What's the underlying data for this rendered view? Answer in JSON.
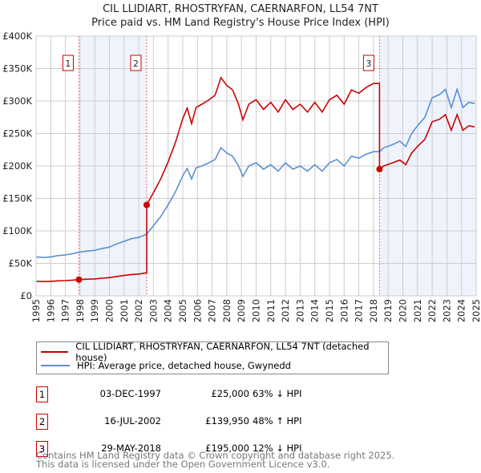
{
  "chart_data": {
    "type": "line",
    "title": "CIL LLIDIART, RHOSTRYFAN, CAERNARFON, LL54 7NT",
    "subtitle": "Price paid vs. HM Land Registry's House Price Index (HPI)",
    "xlim": [
      1995,
      2025
    ],
    "ylim": [
      0,
      400000
    ],
    "x_ticks": [
      "1995",
      "1996",
      "1997",
      "1998",
      "1999",
      "2000",
      "2001",
      "2002",
      "2003",
      "2004",
      "2005",
      "2006",
      "2007",
      "2008",
      "2009",
      "2010",
      "2011",
      "2012",
      "2013",
      "2014",
      "2015",
      "2016",
      "2017",
      "2018",
      "2019",
      "2020",
      "2021",
      "2022",
      "2023",
      "2024",
      "2025"
    ],
    "y_ticks": [
      {
        "v": 0,
        "label": "£0"
      },
      {
        "v": 50000,
        "label": "£50K"
      },
      {
        "v": 100000,
        "label": "£100K"
      },
      {
        "v": 150000,
        "label": "£150K"
      },
      {
        "v": 200000,
        "label": "£200K"
      },
      {
        "v": 250000,
        "label": "£250K"
      },
      {
        "v": 300000,
        "label": "£300K"
      },
      {
        "v": 350000,
        "label": "£350K"
      },
      {
        "v": 400000,
        "label": "£400K"
      }
    ],
    "grid": true,
    "series": [
      {
        "name": "CIL LLIDIART, RHOSTRYFAN, CAERNARFON, LL54 7NT (detached house)",
        "color": "#cc0000",
        "points": [
          [
            1995,
            22.4
          ],
          [
            1995.5,
            22
          ],
          [
            1996,
            22.4
          ],
          [
            1996.5,
            23.1
          ],
          [
            1997,
            23.5
          ],
          [
            1997.5,
            24.2
          ],
          [
            1997.92,
            25
          ],
          [
            1998.5,
            25.7
          ],
          [
            1999,
            26.1
          ],
          [
            1999.5,
            27.2
          ],
          [
            2000,
            28
          ],
          [
            2000.5,
            29.8
          ],
          [
            2001,
            31.3
          ],
          [
            2001.5,
            32.8
          ],
          [
            2002,
            33.6
          ],
          [
            2002.54,
            35.4
          ],
          [
            2002.54,
            139.95
          ],
          [
            2003,
            159
          ],
          [
            2003.5,
            180
          ],
          [
            2004,
            206
          ],
          [
            2004.5,
            236
          ],
          [
            2005,
            273
          ],
          [
            2005.3,
            289
          ],
          [
            2005.6,
            265
          ],
          [
            2005.9,
            290
          ],
          [
            2006.3,
            295
          ],
          [
            2006.8,
            302
          ],
          [
            2007.2,
            309
          ],
          [
            2007.6,
            336
          ],
          [
            2008,
            324
          ],
          [
            2008.4,
            317
          ],
          [
            2008.8,
            295
          ],
          [
            2009.1,
            271
          ],
          [
            2009.5,
            295
          ],
          [
            2010,
            302
          ],
          [
            2010.5,
            287
          ],
          [
            2011,
            298
          ],
          [
            2011.5,
            283
          ],
          [
            2012,
            302
          ],
          [
            2012.5,
            287
          ],
          [
            2013,
            295
          ],
          [
            2013.5,
            283
          ],
          [
            2014,
            298
          ],
          [
            2014.5,
            283
          ],
          [
            2015,
            302
          ],
          [
            2015.5,
            309
          ],
          [
            2016,
            295
          ],
          [
            2016.5,
            317
          ],
          [
            2017,
            312
          ],
          [
            2017.5,
            321
          ],
          [
            2018,
            327
          ],
          [
            2018.41,
            327
          ],
          [
            2018.41,
            195
          ],
          [
            2018.7,
            200
          ],
          [
            2019.2,
            204
          ],
          [
            2019.8,
            209
          ],
          [
            2020.2,
            202
          ],
          [
            2020.6,
            220
          ],
          [
            2021,
            230
          ],
          [
            2021.5,
            241
          ],
          [
            2022,
            268
          ],
          [
            2022.5,
            272
          ],
          [
            2022.9,
            279
          ],
          [
            2023.3,
            255
          ],
          [
            2023.7,
            279
          ],
          [
            2024.1,
            255
          ],
          [
            2024.5,
            262
          ],
          [
            2024.9,
            260
          ]
        ]
      },
      {
        "name": "HPI: Average price, detached house, Gwynedd",
        "color": "#5b8fd4",
        "points": [
          [
            1995,
            60
          ],
          [
            1995.5,
            59
          ],
          [
            1996,
            60
          ],
          [
            1996.5,
            62
          ],
          [
            1997,
            63
          ],
          [
            1997.5,
            65
          ],
          [
            1997.92,
            67
          ],
          [
            1998.5,
            69
          ],
          [
            1999,
            70
          ],
          [
            1999.5,
            73
          ],
          [
            2000,
            75
          ],
          [
            2000.5,
            80
          ],
          [
            2001,
            84
          ],
          [
            2001.5,
            88
          ],
          [
            2002,
            90
          ],
          [
            2002.54,
            95
          ],
          [
            2003,
            108
          ],
          [
            2003.5,
            122
          ],
          [
            2004,
            140
          ],
          [
            2004.5,
            160
          ],
          [
            2005,
            185
          ],
          [
            2005.3,
            196
          ],
          [
            2005.6,
            180
          ],
          [
            2005.9,
            197
          ],
          [
            2006.3,
            200
          ],
          [
            2006.8,
            205
          ],
          [
            2007.2,
            210
          ],
          [
            2007.6,
            228
          ],
          [
            2008,
            220
          ],
          [
            2008.4,
            215
          ],
          [
            2008.8,
            200
          ],
          [
            2009.1,
            184
          ],
          [
            2009.5,
            200
          ],
          [
            2010,
            205
          ],
          [
            2010.5,
            195
          ],
          [
            2011,
            202
          ],
          [
            2011.5,
            192
          ],
          [
            2012,
            205
          ],
          [
            2012.5,
            195
          ],
          [
            2013,
            200
          ],
          [
            2013.5,
            192
          ],
          [
            2014,
            202
          ],
          [
            2014.5,
            192
          ],
          [
            2015,
            205
          ],
          [
            2015.5,
            210
          ],
          [
            2016,
            200
          ],
          [
            2016.5,
            215
          ],
          [
            2017,
            212
          ],
          [
            2017.5,
            218
          ],
          [
            2018,
            222
          ],
          [
            2018.41,
            222
          ],
          [
            2018.7,
            228
          ],
          [
            2019.2,
            232
          ],
          [
            2019.8,
            238
          ],
          [
            2020.2,
            230
          ],
          [
            2020.6,
            250
          ],
          [
            2021,
            262
          ],
          [
            2021.5,
            275
          ],
          [
            2022,
            305
          ],
          [
            2022.5,
            310
          ],
          [
            2022.9,
            318
          ],
          [
            2023.3,
            290
          ],
          [
            2023.7,
            318
          ],
          [
            2024.1,
            290
          ],
          [
            2024.5,
            298
          ],
          [
            2024.9,
            296
          ]
        ]
      }
    ],
    "value_units": "thousands GBP",
    "sales": [
      {
        "n": "1",
        "x": 1997.92,
        "y": 25
      },
      {
        "n": "2",
        "x": 2002.54,
        "y": 139.95
      },
      {
        "n": "3",
        "x": 2018.41,
        "y": 195
      }
    ],
    "shaded_ranges": [
      [
        1997.92,
        2002.54
      ],
      [
        2018.41,
        2025
      ]
    ],
    "legend": "below"
  },
  "legend": {
    "item1": "CIL LLIDIART, RHOSTRYFAN, CAERNARFON, LL54 7NT (detached house)",
    "item2": "HPI: Average price, detached house, Gwynedd"
  },
  "transactions": [
    {
      "n": "1",
      "date": "03-DEC-1997",
      "price": "£25,000",
      "hpi": "63% ↓ HPI"
    },
    {
      "n": "2",
      "date": "16-JUL-2002",
      "price": "£139,950",
      "hpi": "48% ↑ HPI"
    },
    {
      "n": "3",
      "date": "29-MAY-2018",
      "price": "£195,000",
      "hpi": "12% ↓ HPI"
    }
  ],
  "footer": {
    "line1": "Contains HM Land Registry data © Crown copyright and database right 2025.",
    "line2": "This data is licensed under the Open Government Licence v3.0."
  }
}
